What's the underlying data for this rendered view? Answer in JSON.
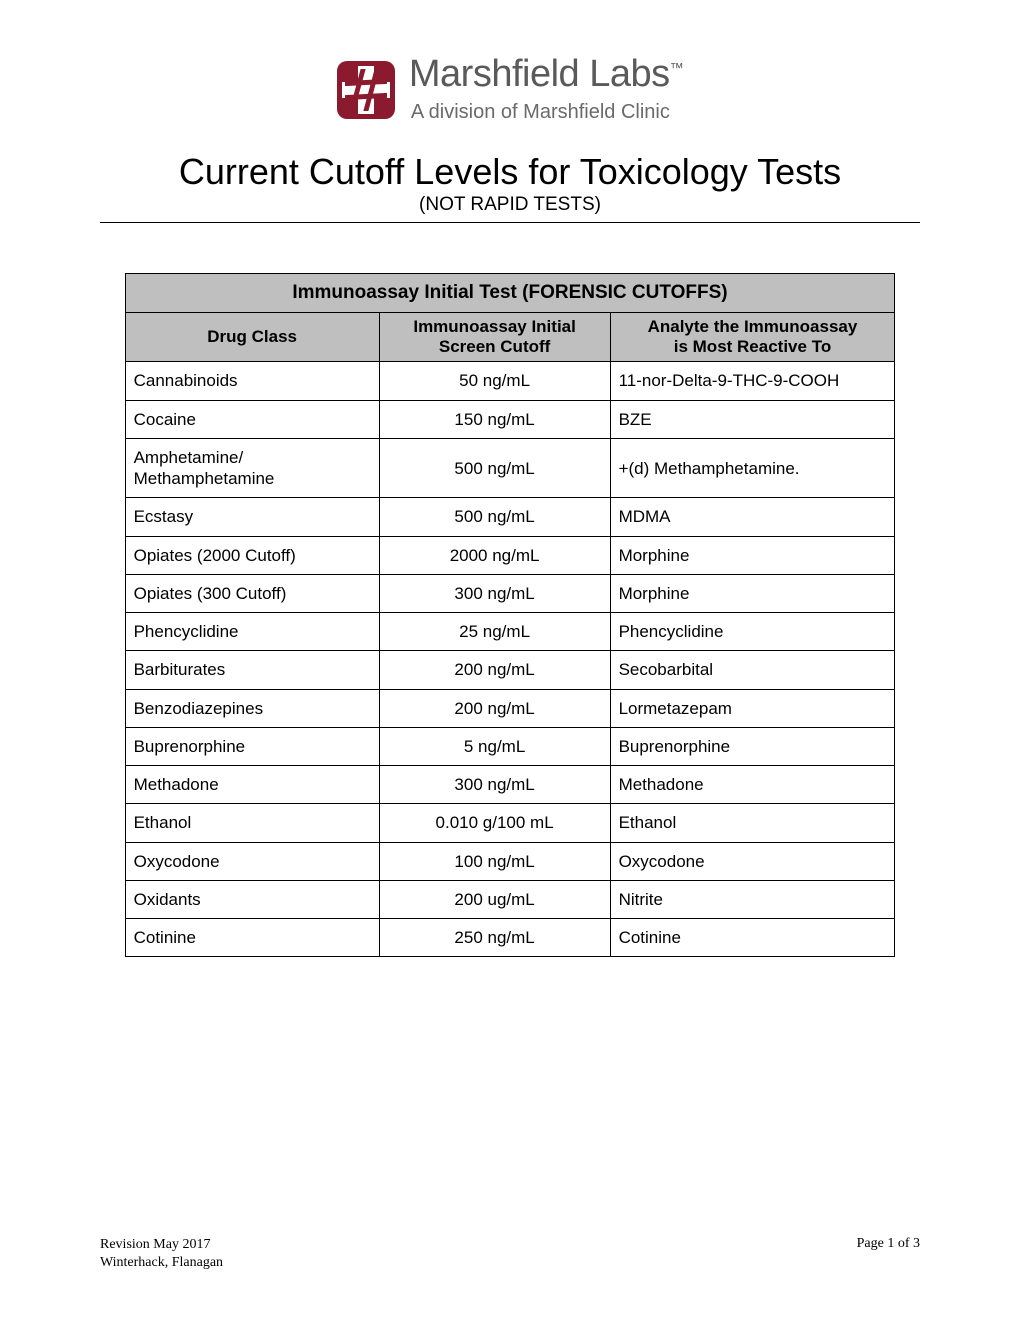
{
  "logo": {
    "name": "Marshfield Labs",
    "tm": "™",
    "tagline": "A division of Marshfield Clinic",
    "mark_color": "#8b1a2e"
  },
  "title": {
    "main": "Current Cutoff Levels for Toxicology Tests",
    "sub": "(NOT RAPID TESTS)"
  },
  "table": {
    "title": "Immunoassay Initial Test (FORENSIC CUTOFFS)",
    "columns": {
      "drug_class": "Drug Class",
      "cutoff_line1": "Immunoassay Initial",
      "cutoff_line2": "Screen Cutoff",
      "analyte_line1": "Analyte the Immunoassay",
      "analyte_line2": "is Most Reactive To"
    },
    "header_bg": "#bfbfbf",
    "rows": [
      {
        "drug": "Cannabinoids",
        "cutoff": "50 ng/mL",
        "analyte": "11-nor-Delta-9-THC-9-COOH"
      },
      {
        "drug": "Cocaine",
        "cutoff": "150 ng/mL",
        "analyte": "BZE"
      },
      {
        "drug": "Amphetamine/ Methamphetamine",
        "cutoff": "500 ng/mL",
        "analyte": "+(d) Methamphetamine."
      },
      {
        "drug": "Ecstasy",
        "cutoff": "500 ng/mL",
        "analyte": "MDMA"
      },
      {
        "drug": "Opiates (2000 Cutoff)",
        "cutoff": "2000 ng/mL",
        "analyte": "Morphine"
      },
      {
        "drug": "Opiates (300 Cutoff)",
        "cutoff": "300 ng/mL",
        "analyte": "Morphine"
      },
      {
        "drug": "Phencyclidine",
        "cutoff": "25 ng/mL",
        "analyte": "Phencyclidine"
      },
      {
        "drug": "Barbiturates",
        "cutoff": "200 ng/mL",
        "analyte": "Secobarbital"
      },
      {
        "drug": "Benzodiazepines",
        "cutoff": "200 ng/mL",
        "analyte": "Lormetazepam"
      },
      {
        "drug": "Buprenorphine",
        "cutoff": "5 ng/mL",
        "analyte": "Buprenorphine"
      },
      {
        "drug": "Methadone",
        "cutoff": "300 ng/mL",
        "analyte": "Methadone"
      },
      {
        "drug": "Ethanol",
        "cutoff": "0.010 g/100 mL",
        "analyte": "Ethanol"
      },
      {
        "drug": "Oxycodone",
        "cutoff": "100 ng/mL",
        "analyte": "Oxycodone"
      },
      {
        "drug": "Oxidants",
        "cutoff": "200 ug/mL",
        "analyte": "Nitrite"
      },
      {
        "drug": "Cotinine",
        "cutoff": "250 ng/mL",
        "analyte": "Cotinine"
      }
    ]
  },
  "footer": {
    "revision": "Revision May 2017",
    "authors": "Winterhack, Flanagan",
    "page": "Page 1 of 3"
  }
}
